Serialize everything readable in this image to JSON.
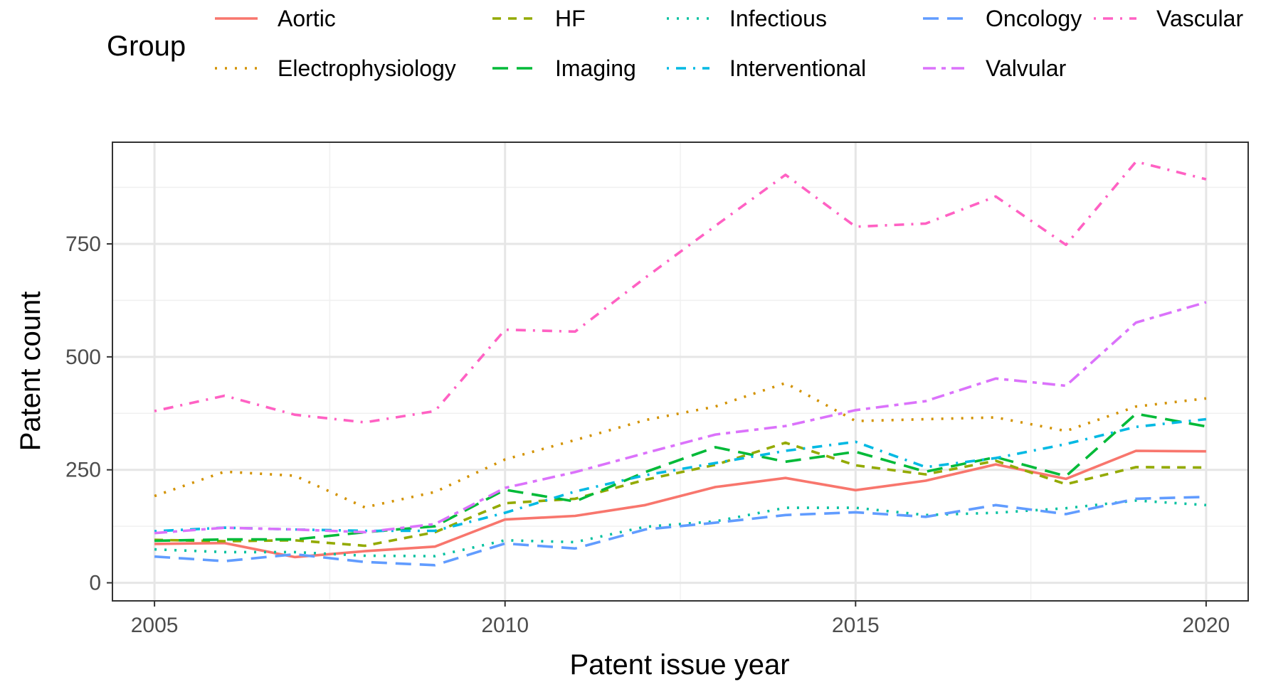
{
  "chart_data": {
    "type": "line",
    "xlabel": "Patent issue year",
    "ylabel": "Patent count",
    "xlim": [
      2004.4,
      2020.6
    ],
    "ylim": [
      -40,
      975
    ],
    "x_ticks": [
      2005,
      2010,
      2015,
      2020
    ],
    "y_ticks": [
      0,
      250,
      500,
      750
    ],
    "grid": true,
    "legend": {
      "title": "Group",
      "position": "top"
    },
    "x": [
      2005,
      2006,
      2007,
      2008,
      2009,
      2010,
      2011,
      2012,
      2013,
      2014,
      2015,
      2016,
      2017,
      2018,
      2019,
      2020
    ],
    "series": [
      {
        "name": "Aortic",
        "color": "#F8766D",
        "dash": "solid",
        "values": [
          86,
          88,
          57,
          70,
          80,
          140,
          148,
          172,
          212,
          232,
          205,
          226,
          262,
          230,
          292,
          291
        ]
      },
      {
        "name": "Electrophysiology",
        "color": "#D39200",
        "dash": "dotted",
        "values": [
          192,
          246,
          237,
          167,
          201,
          273,
          316,
          360,
          390,
          442,
          358,
          362,
          366,
          336,
          390,
          408
        ]
      },
      {
        "name": "HF",
        "color": "#93AA00",
        "dash": "dashed",
        "values": [
          95,
          92,
          94,
          82,
          112,
          176,
          186,
          228,
          261,
          310,
          260,
          240,
          270,
          218,
          256,
          255
        ]
      },
      {
        "name": "Imaging",
        "color": "#00BA38",
        "dash": "longdash",
        "values": [
          93,
          96,
          96,
          112,
          125,
          206,
          180,
          245,
          300,
          268,
          290,
          246,
          278,
          236,
          374,
          346
        ]
      },
      {
        "name": "Infectious",
        "color": "#00C19F",
        "dash": "dotted",
        "values": [
          74,
          68,
          68,
          60,
          59,
          94,
          90,
          124,
          136,
          166,
          166,
          150,
          155,
          165,
          182,
          172
        ]
      },
      {
        "name": "Interventional",
        "color": "#00B9E3",
        "dash": "dotdash",
        "values": [
          114,
          122,
          118,
          115,
          115,
          155,
          202,
          238,
          265,
          292,
          312,
          256,
          276,
          307,
          345,
          362
        ]
      },
      {
        "name": "Oncology",
        "color": "#619CFF",
        "dash": "longdash",
        "values": [
          58,
          48,
          63,
          46,
          39,
          87,
          76,
          118,
          133,
          150,
          156,
          146,
          172,
          152,
          186,
          190
        ]
      },
      {
        "name": "Valvular",
        "color": "#DB72FB",
        "dash": "twodash",
        "values": [
          110,
          122,
          118,
          112,
          130,
          210,
          245,
          287,
          328,
          347,
          382,
          402,
          452,
          436,
          576,
          621
        ]
      },
      {
        "name": "Vascular",
        "color": "#FF61C3",
        "dash": "dotdash",
        "values": [
          380,
          414,
          372,
          355,
          380,
          560,
          556,
          675,
          790,
          903,
          788,
          795,
          855,
          748,
          932,
          893
        ]
      }
    ]
  }
}
